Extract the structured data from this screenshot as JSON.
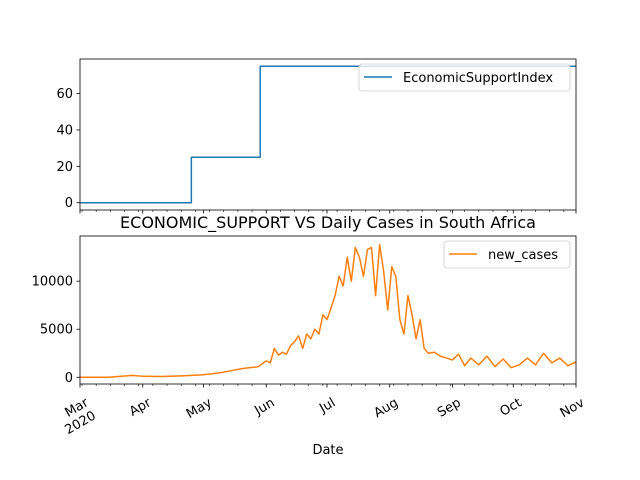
{
  "chart_data": [
    {
      "type": "line",
      "title": "",
      "xlabel": "",
      "ylabel": "",
      "xlim": [
        "2020-03-01",
        "2020-11-01"
      ],
      "ylim": [
        -4,
        79
      ],
      "yticks": [
        0,
        20,
        40,
        60
      ],
      "grid": false,
      "legend_position": "top-right",
      "color": "#1f77b4",
      "series": [
        {
          "name": "EconomicSupportIndex",
          "x": [
            "2020-03-01",
            "2020-04-25",
            "2020-04-25",
            "2020-05-29",
            "2020-05-29",
            "2020-11-01"
          ],
          "values": [
            0,
            0,
            25,
            25,
            75,
            75
          ]
        }
      ]
    },
    {
      "type": "line",
      "title": "ECONOMIC_SUPPORT VS Daily Cases in South Africa",
      "xlabel": "Date",
      "ylabel": "",
      "xlim": [
        "2020-03-01",
        "2020-11-01"
      ],
      "ylim": [
        -700,
        14700
      ],
      "yticks": [
        0,
        5000,
        10000
      ],
      "grid": false,
      "legend_position": "top-right",
      "color": "#ff7f0e",
      "x_tick_labels": [
        {
          "date": "2020-03-01",
          "label": "Mar",
          "sub": "2020"
        },
        {
          "date": "2020-04-01",
          "label": "Apr"
        },
        {
          "date": "2020-05-01",
          "label": "May"
        },
        {
          "date": "2020-06-01",
          "label": "Jun"
        },
        {
          "date": "2020-07-01",
          "label": "Jul"
        },
        {
          "date": "2020-08-01",
          "label": "Aug"
        },
        {
          "date": "2020-09-01",
          "label": "Sep"
        },
        {
          "date": "2020-10-01",
          "label": "Oct"
        },
        {
          "date": "2020-11-01",
          "label": "Nov"
        }
      ],
      "series": [
        {
          "name": "new_cases",
          "x": [
            "2020-03-01",
            "2020-03-15",
            "2020-03-27",
            "2020-04-01",
            "2020-04-10",
            "2020-04-20",
            "2020-04-30",
            "2020-05-05",
            "2020-05-10",
            "2020-05-15",
            "2020-05-20",
            "2020-05-24",
            "2020-05-28",
            "2020-06-01",
            "2020-06-03",
            "2020-06-05",
            "2020-06-07",
            "2020-06-09",
            "2020-06-11",
            "2020-06-13",
            "2020-06-15",
            "2020-06-17",
            "2020-06-19",
            "2020-06-21",
            "2020-06-23",
            "2020-06-25",
            "2020-06-27",
            "2020-06-29",
            "2020-07-01",
            "2020-07-03",
            "2020-07-05",
            "2020-07-07",
            "2020-07-09",
            "2020-07-11",
            "2020-07-13",
            "2020-07-15",
            "2020-07-17",
            "2020-07-19",
            "2020-07-21",
            "2020-07-23",
            "2020-07-25",
            "2020-07-27",
            "2020-07-29",
            "2020-07-31",
            "2020-08-02",
            "2020-08-04",
            "2020-08-06",
            "2020-08-08",
            "2020-08-10",
            "2020-08-12",
            "2020-08-14",
            "2020-08-16",
            "2020-08-18",
            "2020-08-20",
            "2020-08-23",
            "2020-08-26",
            "2020-08-29",
            "2020-09-01",
            "2020-09-04",
            "2020-09-07",
            "2020-09-10",
            "2020-09-14",
            "2020-09-18",
            "2020-09-22",
            "2020-09-26",
            "2020-09-30",
            "2020-10-04",
            "2020-10-08",
            "2020-10-12",
            "2020-10-16",
            "2020-10-20",
            "2020-10-24",
            "2020-10-28",
            "2020-11-01"
          ],
          "values": [
            0,
            5,
            200,
            100,
            80,
            150,
            250,
            350,
            500,
            700,
            900,
            1000,
            1100,
            1700,
            1500,
            3000,
            2300,
            2600,
            2400,
            3300,
            3700,
            4300,
            3000,
            4500,
            4000,
            5000,
            4500,
            6500,
            6000,
            7200,
            8500,
            10500,
            9500,
            12500,
            10000,
            13500,
            12500,
            10500,
            13300,
            13500,
            8500,
            13800,
            11000,
            7000,
            11500,
            10500,
            6000,
            4500,
            8500,
            6500,
            4000,
            6000,
            3000,
            2500,
            2600,
            2200,
            2000,
            1800,
            2400,
            1200,
            2000,
            1300,
            2200,
            1100,
            1900,
            1000,
            1300,
            2000,
            1300,
            2500,
            1500,
            2000,
            1200,
            1600
          ]
        }
      ]
    }
  ]
}
